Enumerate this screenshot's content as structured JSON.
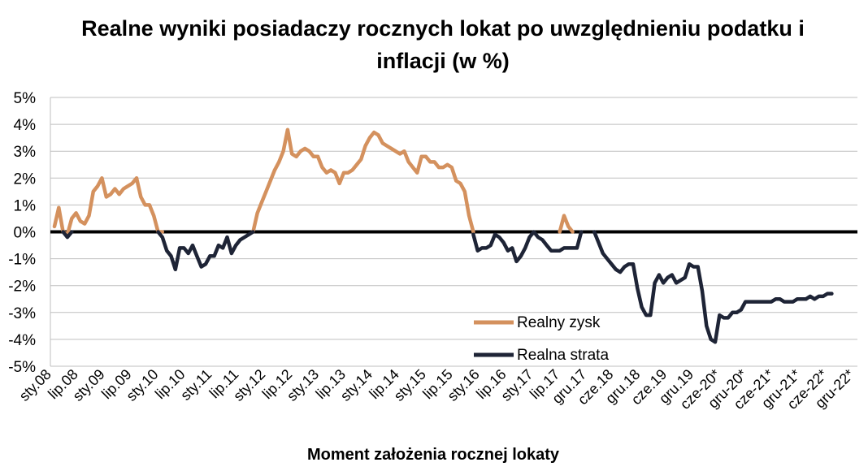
{
  "chart_data": {
    "type": "line",
    "title_lines": [
      "Realne wyniki posiadaczy rocznych lokat po uwzględnieniu podatku i",
      "inflacji (w %)"
    ],
    "xlabel": "Moment założenia rocznej lokaty",
    "ylabel": "",
    "ylim": [
      -5,
      5
    ],
    "y_ticks": [
      "5%",
      "4%",
      "3%",
      "2%",
      "1%",
      "0%",
      "-1%",
      "-2%",
      "-3%",
      "-4%",
      "-5%"
    ],
    "x_ticks": [
      "sty.08",
      "lip.08",
      "sty.09",
      "lip.09",
      "sty.10",
      "lip.10",
      "sty.11",
      "lip.11",
      "sty.12",
      "lip.12",
      "sty.13",
      "lip.13",
      "sty.14",
      "lip.14",
      "sty.15",
      "lip.15",
      "sty.16",
      "lip.16",
      "sty.17",
      "lip.17",
      "gru.17",
      "cze.18",
      "gru.18",
      "cze.19",
      "gru.19",
      "cze-20*",
      "gru-20*",
      "cze-21*",
      "gru-21*",
      "cze-22*",
      "gru-22*"
    ],
    "grid": "horizontal",
    "legend_position": "bottom-center",
    "colors": {
      "gain": "#D4915E",
      "loss": "#1E2436",
      "zero_line": "#000000",
      "grid": "#BFBFBF"
    },
    "series": [
      {
        "name": "Realny zysk",
        "values": [
          0.2,
          0.9,
          0.0,
          -0.1,
          0.5,
          0.7,
          0.4,
          0.3,
          0.6,
          1.5,
          1.7,
          2.0,
          1.3,
          1.4,
          1.6,
          1.4,
          1.6,
          1.7,
          1.8,
          2.0,
          1.3,
          1.0,
          1.0,
          0.6,
          0.0,
          0.0,
          null,
          null,
          null,
          null,
          null,
          null,
          null,
          null,
          null,
          null,
          null,
          null,
          null,
          null,
          null,
          null,
          null,
          null,
          null,
          null,
          0.0,
          0.7,
          1.1,
          1.5,
          1.9,
          2.3,
          2.6,
          3.0,
          3.8,
          2.9,
          2.8,
          3.0,
          3.1,
          3.0,
          2.8,
          2.8,
          2.4,
          2.2,
          2.3,
          2.2,
          1.8,
          2.2,
          2.2,
          2.3,
          2.5,
          2.7,
          3.2,
          3.5,
          3.7,
          3.6,
          3.3,
          3.2,
          3.1,
          3.0,
          2.9,
          3.0,
          2.6,
          2.4,
          2.2,
          2.8,
          2.8,
          2.6,
          2.6,
          2.4,
          2.4,
          2.5,
          2.4,
          1.9,
          1.8,
          1.5,
          0.6,
          0.0,
          null,
          null,
          null,
          null,
          null,
          null,
          null,
          null,
          null,
          null,
          null,
          null,
          null,
          null,
          null,
          null,
          null,
          null,
          null,
          0.0,
          0.6,
          0.2,
          0.0,
          null,
          null,
          null,
          null,
          null,
          null,
          null,
          null,
          null,
          null,
          null,
          null,
          null,
          null,
          null,
          null,
          null,
          null,
          null,
          null,
          null,
          null,
          null,
          null,
          null,
          null,
          null,
          null,
          null,
          null,
          null,
          null,
          null,
          null,
          null,
          null,
          null,
          null,
          null,
          null,
          null,
          null,
          null,
          null,
          null,
          null,
          null,
          null,
          null,
          null,
          null,
          null,
          null,
          null,
          null,
          null,
          null,
          null,
          null,
          null,
          null,
          null,
          null,
          null,
          null
        ]
      },
      {
        "name": "Realna strata",
        "values": [
          null,
          null,
          0.0,
          -0.2,
          0.0,
          null,
          null,
          null,
          null,
          null,
          null,
          null,
          null,
          null,
          null,
          null,
          null,
          null,
          null,
          null,
          null,
          null,
          null,
          null,
          0.0,
          -0.2,
          -0.7,
          -0.9,
          -1.4,
          -0.6,
          -0.6,
          -0.8,
          -0.5,
          -0.9,
          -1.3,
          -1.2,
          -0.9,
          -0.9,
          -0.5,
          -0.6,
          -0.2,
          -0.8,
          -0.5,
          -0.3,
          -0.2,
          -0.1,
          0.0,
          null,
          null,
          null,
          null,
          null,
          null,
          null,
          null,
          null,
          null,
          null,
          null,
          null,
          null,
          null,
          null,
          null,
          null,
          null,
          null,
          null,
          null,
          null,
          null,
          null,
          null,
          null,
          null,
          null,
          null,
          null,
          null,
          null,
          null,
          null,
          null,
          null,
          null,
          null,
          null,
          null,
          null,
          null,
          null,
          null,
          null,
          null,
          null,
          null,
          null,
          -0.1,
          -0.7,
          -0.6,
          -0.6,
          -0.5,
          -0.1,
          -0.2,
          -0.4,
          -0.7,
          -0.6,
          -1.1,
          -0.9,
          -0.6,
          -0.2,
          0.0,
          -0.2,
          -0.3,
          -0.5,
          -0.7,
          -0.7,
          -0.7,
          -0.6,
          -0.6,
          -0.6,
          -0.6,
          0.0,
          null,
          null,
          0.0,
          -0.4,
          -0.8,
          -1.0,
          -1.2,
          -1.4,
          -1.5,
          -1.3,
          -1.2,
          -1.2,
          -2.1,
          -2.8,
          -3.1,
          -3.1,
          -1.9,
          -1.6,
          -1.9,
          -1.7,
          -1.6,
          -1.9,
          -1.8,
          -1.7,
          -1.2,
          -1.3,
          -1.3,
          -2.2,
          -3.5,
          -4.0,
          -4.1,
          -3.1,
          -3.2,
          -3.2,
          -3.0,
          -3.0,
          -2.9,
          -2.6,
          -2.6,
          -2.6,
          -2.6,
          -2.6,
          -2.6,
          -2.6,
          -2.5,
          -2.5,
          -2.6,
          -2.6,
          -2.6,
          -2.5,
          -2.5,
          -2.5,
          -2.4,
          -2.5,
          -2.4,
          -2.4,
          -2.3,
          -2.3
        ]
      }
    ]
  }
}
